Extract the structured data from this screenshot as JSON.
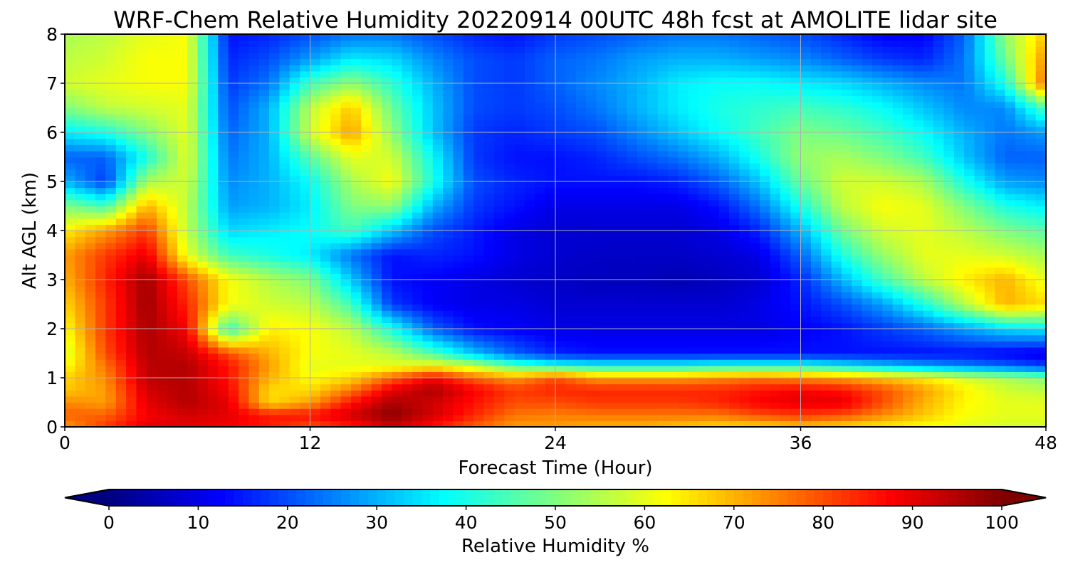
{
  "chart_data": {
    "type": "heatmap",
    "title": "WRF-Chem Relative Humidity 20220914 00UTC 48h fcst at AMOLITE lidar site",
    "xlabel": "Forecast Time (Hour)",
    "ylabel": "Alt AGL (km)",
    "xlim": [
      0,
      48
    ],
    "ylim": [
      0,
      8
    ],
    "xticks": [
      "0",
      "12",
      "24",
      "36",
      "48"
    ],
    "yticks": [
      "0",
      "1",
      "2",
      "3",
      "4",
      "5",
      "6",
      "7",
      "8"
    ],
    "grid": true,
    "colormap": "jet",
    "colorbar": {
      "label": "Relative Humidity %",
      "range": [
        0,
        100
      ],
      "ticks": [
        "0",
        "10",
        "20",
        "30",
        "40",
        "50",
        "60",
        "70",
        "80",
        "90",
        "100"
      ],
      "extend": "both",
      "orientation": "horizontal"
    },
    "x": [
      0,
      2,
      4,
      6,
      8,
      10,
      12,
      14,
      16,
      18,
      20,
      22,
      24,
      26,
      28,
      30,
      32,
      34,
      36,
      38,
      40,
      42,
      44,
      46,
      48
    ],
    "y": [
      0,
      0.25,
      0.5,
      0.75,
      1,
      1.25,
      1.5,
      2,
      2.5,
      3,
      3.5,
      4,
      4.5,
      5,
      5.5,
      6,
      6.5,
      7,
      7.5,
      8
    ],
    "z": [
      [
        72,
        82,
        90,
        90,
        88,
        85,
        80,
        85,
        92,
        86,
        78,
        72,
        72,
        70,
        70,
        68,
        66,
        66,
        68,
        66,
        64,
        62,
        60,
        58,
        58
      ],
      [
        78,
        78,
        88,
        92,
        90,
        85,
        86,
        92,
        99,
        92,
        84,
        76,
        75,
        76,
        76,
        76,
        76,
        80,
        82,
        80,
        74,
        68,
        62,
        60,
        60
      ],
      [
        74,
        72,
        90,
        95,
        90,
        66,
        72,
        86,
        96,
        92,
        86,
        80,
        80,
        82,
        82,
        82,
        84,
        88,
        90,
        90,
        80,
        70,
        63,
        60,
        60
      ],
      [
        68,
        72,
        92,
        95,
        88,
        66,
        66,
        76,
        90,
        96,
        88,
        82,
        84,
        84,
        84,
        84,
        84,
        86,
        88,
        86,
        80,
        72,
        64,
        58,
        56
      ],
      [
        66,
        74,
        94,
        95,
        86,
        70,
        62,
        66,
        78,
        88,
        78,
        72,
        80,
        72,
        72,
        72,
        74,
        76,
        74,
        72,
        68,
        64,
        58,
        54,
        50
      ],
      [
        62,
        76,
        94,
        95,
        86,
        72,
        60,
        60,
        60,
        62,
        56,
        45,
        40,
        38,
        38,
        38,
        40,
        40,
        40,
        36,
        32,
        28,
        25,
        22,
        18
      ],
      [
        58,
        80,
        95,
        93,
        80,
        70,
        62,
        60,
        56,
        45,
        32,
        22,
        16,
        14,
        14,
        14,
        14,
        14,
        14,
        14,
        14,
        14,
        14,
        12,
        10
      ],
      [
        62,
        82,
        96,
        88,
        42,
        64,
        62,
        56,
        40,
        22,
        14,
        12,
        10,
        10,
        10,
        10,
        10,
        10,
        12,
        14,
        18,
        22,
        28,
        34,
        36
      ],
      [
        66,
        82,
        97,
        84,
        62,
        58,
        56,
        44,
        18,
        12,
        10,
        10,
        8,
        8,
        8,
        8,
        8,
        10,
        14,
        20,
        28,
        40,
        55,
        70,
        66
      ],
      [
        70,
        84,
        97,
        80,
        62,
        55,
        50,
        32,
        14,
        12,
        10,
        8,
        7,
        6,
        6,
        5,
        6,
        8,
        16,
        30,
        44,
        56,
        64,
        70,
        60
      ],
      [
        72,
        82,
        90,
        60,
        44,
        40,
        36,
        24,
        14,
        16,
        14,
        10,
        8,
        7,
        7,
        7,
        8,
        10,
        22,
        40,
        52,
        60,
        60,
        58,
        54
      ],
      [
        64,
        72,
        82,
        56,
        34,
        36,
        38,
        44,
        32,
        20,
        15,
        10,
        8,
        8,
        8,
        8,
        10,
        16,
        30,
        48,
        58,
        60,
        56,
        50,
        46
      ],
      [
        50,
        44,
        70,
        56,
        28,
        30,
        36,
        50,
        52,
        30,
        18,
        14,
        10,
        10,
        10,
        10,
        14,
        24,
        40,
        56,
        62,
        60,
        50,
        40,
        36
      ],
      [
        30,
        18,
        54,
        58,
        26,
        30,
        38,
        54,
        62,
        40,
        20,
        16,
        14,
        14,
        14,
        16,
        22,
        32,
        48,
        58,
        58,
        54,
        40,
        28,
        26
      ],
      [
        22,
        22,
        40,
        60,
        24,
        30,
        46,
        60,
        58,
        38,
        18,
        14,
        14,
        16,
        20,
        24,
        30,
        40,
        52,
        54,
        50,
        44,
        32,
        22,
        22
      ],
      [
        36,
        40,
        50,
        60,
        22,
        30,
        58,
        72,
        52,
        32,
        18,
        16,
        18,
        20,
        26,
        32,
        38,
        44,
        50,
        48,
        44,
        38,
        30,
        24,
        28
      ],
      [
        50,
        56,
        58,
        60,
        20,
        30,
        56,
        68,
        48,
        32,
        20,
        18,
        20,
        24,
        30,
        36,
        40,
        42,
        44,
        42,
        38,
        32,
        26,
        26,
        46
      ],
      [
        58,
        60,
        62,
        62,
        18,
        24,
        44,
        52,
        42,
        30,
        20,
        18,
        22,
        26,
        30,
        36,
        38,
        38,
        36,
        34,
        30,
        26,
        24,
        40,
        78
      ],
      [
        56,
        58,
        62,
        62,
        16,
        20,
        28,
        36,
        34,
        26,
        20,
        18,
        22,
        24,
        28,
        30,
        30,
        28,
        26,
        22,
        18,
        16,
        24,
        48,
        74
      ],
      [
        54,
        56,
        60,
        62,
        14,
        16,
        20,
        24,
        24,
        20,
        16,
        14,
        18,
        20,
        22,
        24,
        24,
        22,
        20,
        16,
        12,
        12,
        22,
        52,
        68
      ]
    ]
  }
}
